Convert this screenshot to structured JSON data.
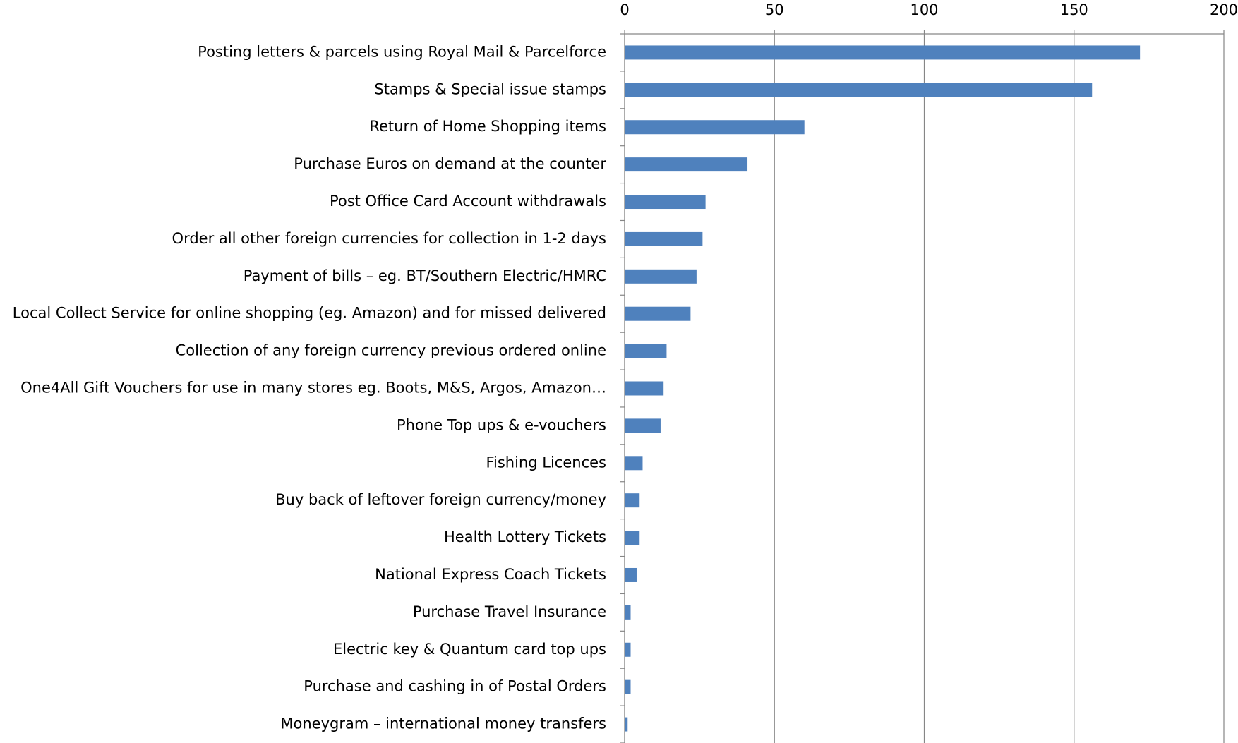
{
  "chart_data": {
    "type": "bar",
    "orientation": "horizontal",
    "categories": [
      "Posting letters & parcels using Royal Mail & Parcelforce",
      "Stamps & Special issue stamps",
      "Return of Home Shopping items",
      "Purchase Euros on demand at the counter",
      "Post Office Card Account withdrawals",
      "Order all other foreign currencies for collection in 1-2 days",
      "Payment of bills – eg. BT/Southern Electric/HMRC",
      "Local Collect Service for online shopping (eg. Amazon) and for missed delivered",
      "Collection of any foreign currency previous ordered online",
      "One4All Gift Vouchers for use in many stores eg. Boots, M&S, Argos, Amazon…",
      "Phone Top ups & e-vouchers",
      "Fishing Licences",
      "Buy back of leftover foreign currency/money",
      "Health Lottery Tickets",
      "National Express Coach Tickets",
      "Purchase Travel Insurance",
      "Electric key & Quantum card top ups",
      "Purchase and cashing in of Postal Orders",
      "Moneygram – international money transfers"
    ],
    "values": [
      172,
      156,
      60,
      41,
      27,
      26,
      24,
      22,
      14,
      13,
      12,
      6,
      5,
      5,
      4,
      2,
      2,
      2,
      1
    ],
    "color": "#4f81bd",
    "xlim": [
      0,
      200
    ],
    "xticks": [
      0,
      50,
      100,
      150,
      200
    ],
    "grid": true
  }
}
